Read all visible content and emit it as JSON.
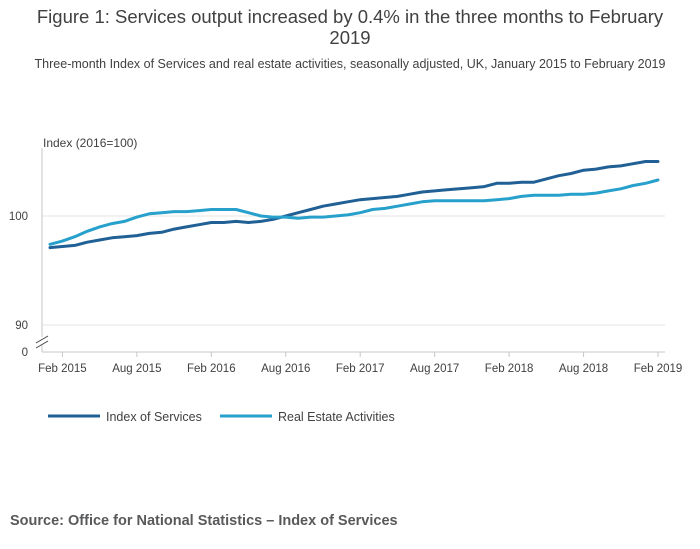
{
  "chart_data": {
    "type": "line",
    "title": "Figure 1: Services output increased by 0.4% in the three months to February 2019",
    "subtitle": "Three-month Index of Services and real estate activities, seasonally adjusted, UK, January 2015 to February 2019",
    "ylabel": "Index (2016=100)",
    "xlabel": "",
    "ylim": [
      90,
      106
    ],
    "y_axis_break": true,
    "yticks": [
      0,
      90,
      100
    ],
    "xtick_labels": [
      "Feb 2015",
      "Aug 2015",
      "Feb 2016",
      "Aug 2016",
      "Feb 2017",
      "Aug 2017",
      "Feb 2018",
      "Aug 2018",
      "Feb 2019"
    ],
    "xtick_index": [
      1,
      7,
      13,
      19,
      25,
      31,
      37,
      43,
      49
    ],
    "grid": true,
    "legend_position": "bottom-left",
    "x": [
      "Jan 2015",
      "Feb 2015",
      "Mar 2015",
      "Apr 2015",
      "May 2015",
      "Jun 2015",
      "Jul 2015",
      "Aug 2015",
      "Sep 2015",
      "Oct 2015",
      "Nov 2015",
      "Dec 2015",
      "Jan 2016",
      "Feb 2016",
      "Mar 2016",
      "Apr 2016",
      "May 2016",
      "Jun 2016",
      "Jul 2016",
      "Aug 2016",
      "Sep 2016",
      "Oct 2016",
      "Nov 2016",
      "Dec 2016",
      "Jan 2017",
      "Feb 2017",
      "Mar 2017",
      "Apr 2017",
      "May 2017",
      "Jun 2017",
      "Jul 2017",
      "Aug 2017",
      "Sep 2017",
      "Oct 2017",
      "Nov 2017",
      "Dec 2017",
      "Jan 2018",
      "Feb 2018",
      "Mar 2018",
      "Apr 2018",
      "May 2018",
      "Jun 2018",
      "Jul 2018",
      "Aug 2018",
      "Sep 2018",
      "Oct 2018",
      "Nov 2018",
      "Dec 2018",
      "Jan 2019",
      "Feb 2019"
    ],
    "series": [
      {
        "name": "Index of Services",
        "color": "#206095",
        "values": [
          97.1,
          97.2,
          97.3,
          97.6,
          97.8,
          98.0,
          98.1,
          98.2,
          98.4,
          98.5,
          98.8,
          99.0,
          99.2,
          99.4,
          99.4,
          99.5,
          99.4,
          99.5,
          99.7,
          100.0,
          100.3,
          100.6,
          100.9,
          101.1,
          101.3,
          101.5,
          101.6,
          101.7,
          101.8,
          102.0,
          102.2,
          102.3,
          102.4,
          102.5,
          102.6,
          102.7,
          103.0,
          103.0,
          103.1,
          103.1,
          103.4,
          103.7,
          103.9,
          104.2,
          104.3,
          104.5,
          104.6,
          104.8,
          105.0,
          105.0
        ]
      },
      {
        "name": "Real Estate Activities",
        "color": "#27a0cc",
        "values": [
          97.4,
          97.7,
          98.1,
          98.6,
          99.0,
          99.3,
          99.5,
          99.9,
          100.2,
          100.3,
          100.4,
          100.4,
          100.5,
          100.6,
          100.6,
          100.6,
          100.3,
          100.0,
          99.9,
          99.9,
          99.8,
          99.9,
          99.9,
          100.0,
          100.1,
          100.3,
          100.6,
          100.7,
          100.9,
          101.1,
          101.3,
          101.4,
          101.4,
          101.4,
          101.4,
          101.4,
          101.5,
          101.6,
          101.8,
          101.9,
          101.9,
          101.9,
          102.0,
          102.0,
          102.1,
          102.3,
          102.5,
          102.8,
          103.0,
          103.3
        ]
      }
    ]
  },
  "footer": {
    "source": "Source: Office for National Statistics – Index of Services"
  }
}
